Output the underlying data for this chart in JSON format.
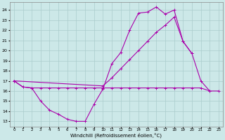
{
  "xlabel": "Windchill (Refroidissement éolien,°C)",
  "bg_color": "#cce8e8",
  "grid_color": "#aacccc",
  "line_color": "#aa00aa",
  "x_ticks": [
    0,
    1,
    2,
    3,
    4,
    5,
    6,
    7,
    8,
    9,
    10,
    11,
    12,
    13,
    14,
    15,
    16,
    17,
    18,
    19,
    20,
    21,
    22,
    23
  ],
  "ylim": [
    12.5,
    24.8
  ],
  "xlim": [
    -0.5,
    23.5
  ],
  "yticks": [
    13,
    14,
    15,
    16,
    17,
    18,
    19,
    20,
    21,
    22,
    23,
    24
  ],
  "line1_x": [
    0,
    1,
    2,
    3,
    4,
    5,
    6,
    7,
    8,
    9,
    10,
    11,
    12,
    13,
    14,
    15,
    16,
    17,
    18,
    19,
    20,
    21,
    22,
    23
  ],
  "line1_y": [
    17.0,
    16.4,
    16.3,
    16.3,
    16.3,
    16.3,
    16.3,
    16.3,
    16.3,
    16.3,
    16.3,
    16.3,
    16.3,
    16.3,
    16.3,
    16.3,
    16.3,
    16.3,
    16.3,
    16.3,
    16.3,
    16.3,
    16.0,
    16.0
  ],
  "line2_x": [
    0,
    1,
    2,
    3,
    4,
    5,
    6,
    7,
    8,
    9,
    10,
    11,
    12,
    13,
    14,
    15,
    16,
    17,
    18,
    19,
    20,
    21,
    22
  ],
  "line2_y": [
    17.0,
    16.4,
    16.3,
    15.0,
    14.1,
    13.7,
    13.2,
    13.0,
    13.0,
    14.7,
    16.2,
    18.7,
    19.8,
    22.0,
    23.7,
    23.8,
    24.3,
    23.6,
    24.0,
    20.9,
    19.7,
    17.0,
    16.0
  ],
  "line3_x": [
    0,
    10,
    11,
    12,
    13,
    14,
    15,
    16,
    17,
    18,
    19,
    20
  ],
  "line3_y": [
    17.0,
    16.5,
    17.3,
    18.2,
    19.1,
    20.0,
    20.9,
    21.8,
    22.5,
    23.3,
    20.9,
    19.7
  ]
}
